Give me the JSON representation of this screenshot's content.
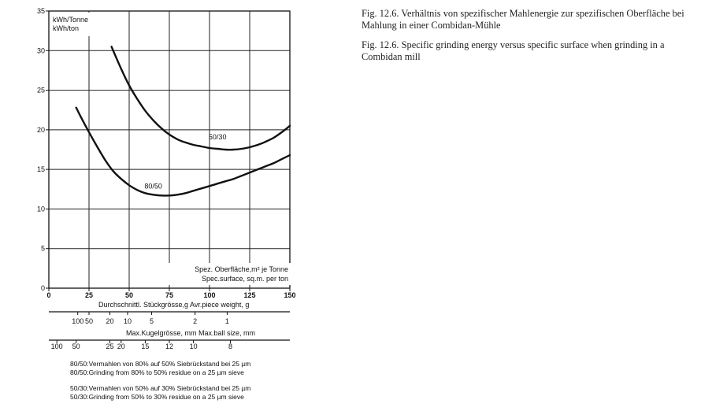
{
  "captions": {
    "german": "Fig. 12.6.   Verhältnis von spezifischer Mahlenergie zur spezifischen Oberfläche bei Mahlung in einer Combidan-Mühle",
    "english": "Fig. 12.6.   Specific grinding energy versus specific surface when grinding in a Combidan mill"
  },
  "chart_data": {
    "type": "line",
    "title": "",
    "ylabel_lines": [
      "kWh/Tonne",
      "kWh/ton"
    ],
    "xlabel_lines": [
      "Spez. Oberfläche,m² je Tonne",
      "Spec.surface, sq.m. per ton"
    ],
    "xlim": [
      0,
      150
    ],
    "ylim": [
      0,
      35
    ],
    "x_ticks": [
      0,
      25,
      50,
      75,
      100,
      125,
      150
    ],
    "y_ticks": [
      0,
      5,
      10,
      15,
      20,
      25,
      30,
      35
    ],
    "grid": true,
    "series": [
      {
        "name": "50/30",
        "x": [
          39,
          45,
          50,
          55,
          60,
          65,
          70,
          75,
          80,
          85,
          90,
          95,
          100,
          105,
          110,
          115,
          120,
          125,
          130,
          135,
          140,
          145,
          150
        ],
        "y": [
          30.5,
          27.7,
          25.6,
          23.9,
          22.4,
          21.2,
          20.2,
          19.4,
          18.8,
          18.4,
          18.1,
          17.9,
          17.7,
          17.6,
          17.5,
          17.5,
          17.6,
          17.8,
          18.1,
          18.5,
          19.0,
          19.7,
          20.5
        ]
      },
      {
        "name": "80/50",
        "x": [
          17,
          20,
          25,
          30,
          35,
          40,
          45,
          50,
          55,
          60,
          65,
          70,
          75,
          80,
          85,
          90,
          95,
          100,
          105,
          110,
          115,
          120,
          125,
          130,
          135,
          140,
          145,
          150
        ],
        "y": [
          22.8,
          21.6,
          19.7,
          17.9,
          16.2,
          14.8,
          13.8,
          13.0,
          12.4,
          12.0,
          11.8,
          11.7,
          11.7,
          11.8,
          12.0,
          12.3,
          12.6,
          12.9,
          13.2,
          13.5,
          13.8,
          14.2,
          14.6,
          15.0,
          15.4,
          15.8,
          16.3,
          16.8
        ]
      }
    ],
    "scales": [
      {
        "name": "Durchschnittl. Stückgrösse,g   Avr.piece weight, g",
        "ticks": [
          {
            "label": "100",
            "at": 18
          },
          {
            "label": "50",
            "at": 25
          },
          {
            "label": "20",
            "at": 38
          },
          {
            "label": "10",
            "at": 49
          },
          {
            "label": "5",
            "at": 64
          },
          {
            "label": "2",
            "at": 91
          },
          {
            "label": "1",
            "at": 111
          }
        ]
      },
      {
        "name": "Max.Kugelgrösse, mm   Max.ball size, mm",
        "ticks": [
          {
            "label": "100",
            "at": 5
          },
          {
            "label": "50",
            "at": 17
          },
          {
            "label": "25",
            "at": 38
          },
          {
            "label": "20",
            "at": 45
          },
          {
            "label": "15",
            "at": 60
          },
          {
            "label": "12",
            "at": 75
          },
          {
            "label": "10",
            "at": 90
          },
          {
            "label": "8",
            "at": 113
          }
        ]
      }
    ],
    "footnotes": [
      "80/50:Vermahlen von 80% auf 50% Siebrückstand bei 25 µm",
      "80/50:Grinding from 80% to 50% residue on a 25 µm sieve",
      "50/30:Vermahlen von 50% auf 30% Siebrückstand bei 25 µm",
      "50/30:Grinding from 50% to 30% residue on a 25 µm sieve"
    ]
  }
}
